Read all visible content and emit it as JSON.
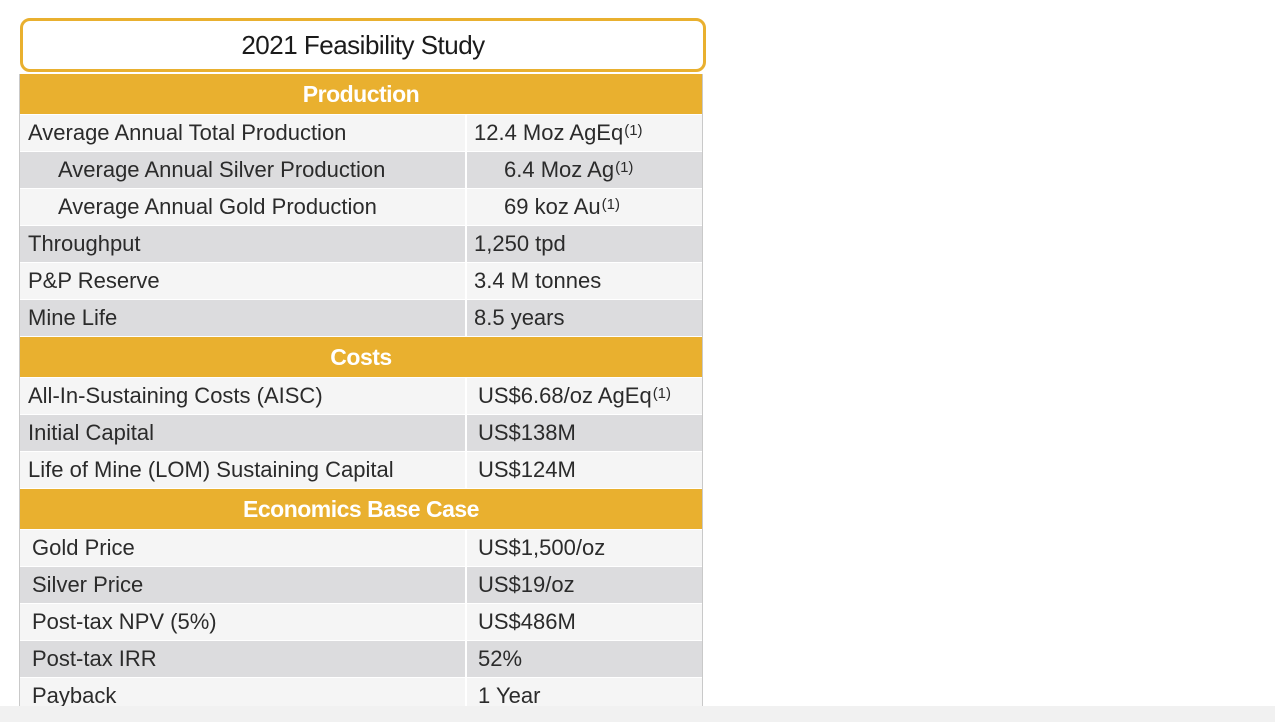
{
  "title": "2021 Feasibility Study",
  "sections": [
    {
      "header": "Production",
      "rows": [
        {
          "label": "Average Annual Total Production",
          "value": "12.4 Moz AgEq",
          "note": "(1)"
        },
        {
          "label": "Average Annual Silver Production",
          "value": "6.4 Moz Ag",
          "note": "(1)"
        },
        {
          "label": "Average Annual Gold Production",
          "value": "69 koz Au",
          "note": "(1)"
        },
        {
          "label": "Throughput",
          "value": "1,250 tpd"
        },
        {
          "label": "P&P Reserve",
          "value": "3.4 M tonnes"
        },
        {
          "label": "Mine Life",
          "value": "8.5 years"
        }
      ]
    },
    {
      "header": "Costs",
      "rows": [
        {
          "label": "All-In-Sustaining Costs (AISC)",
          "value": "US$6.68/oz AgEq",
          "note": "(1)"
        },
        {
          "label": "Initial Capital",
          "value": "US$138M"
        },
        {
          "label": "Life of Mine (LOM) Sustaining Capital",
          "value": "US$124M"
        }
      ]
    },
    {
      "header": "Economics Base Case",
      "rows": [
        {
          "label": "Gold Price",
          "value": "US$1,500/oz"
        },
        {
          "label": "Silver Price",
          "value": "US$19/oz"
        },
        {
          "label": "Post-tax NPV (5%)",
          "value": "US$486M"
        },
        {
          "label": "Post-tax IRR",
          "value": "52%"
        },
        {
          "label": "Payback",
          "value": "1 Year"
        }
      ]
    }
  ],
  "colors": {
    "accent": "#e9b02f",
    "row_light": "#f5f5f5",
    "row_dark": "#dcdcde"
  }
}
